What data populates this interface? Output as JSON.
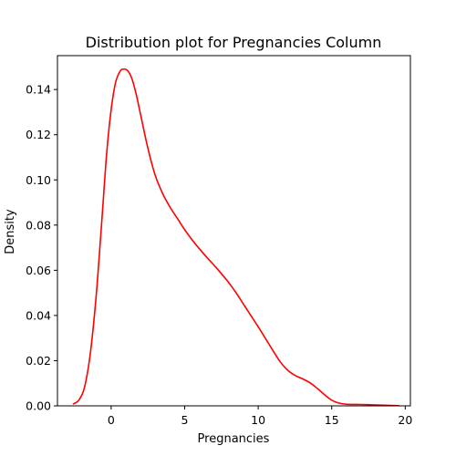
{
  "chart_data": {
    "type": "line",
    "title": "Distribution plot for Pregnancies Column",
    "xlabel": "Pregnancies",
    "ylabel": "Density",
    "xlim": [
      -3.65,
      20.35
    ],
    "ylim": [
      0,
      0.155
    ],
    "x_ticks": [
      0,
      5,
      10,
      15,
      20
    ],
    "y_ticks": [
      0.0,
      0.02,
      0.04,
      0.06,
      0.08,
      0.1,
      0.12,
      0.14
    ],
    "x_tick_labels": [
      "0",
      "5",
      "10",
      "15",
      "20"
    ],
    "y_tick_labels": [
      "0.00",
      "0.02",
      "0.04",
      "0.06",
      "0.08",
      "0.10",
      "0.12",
      "0.14"
    ],
    "grid": false,
    "legend": "none",
    "series": [
      {
        "color": "#ff0000",
        "x": [
          -2.6,
          -2.2,
          -1.8,
          -1.4,
          -1.0,
          -0.6,
          -0.3,
          0.0,
          0.3,
          0.6,
          0.8,
          1.1,
          1.4,
          1.7,
          2.0,
          2.5,
          3.0,
          3.5,
          4.0,
          4.5,
          5.0,
          5.5,
          6.0,
          6.5,
          7.0,
          7.5,
          8.0,
          8.5,
          9.0,
          9.5,
          10.0,
          10.5,
          11.0,
          11.5,
          12.0,
          12.5,
          13.0,
          13.5,
          14.0,
          14.5,
          15.0,
          15.5,
          16.0,
          17.0,
          18.0,
          19.0,
          19.6
        ],
        "y": [
          0.0008,
          0.0025,
          0.0085,
          0.024,
          0.05,
          0.085,
          0.112,
          0.131,
          0.143,
          0.148,
          0.149,
          0.1485,
          0.145,
          0.138,
          0.129,
          0.114,
          0.102,
          0.094,
          0.088,
          0.083,
          0.078,
          0.0735,
          0.0695,
          0.0658,
          0.0622,
          0.0585,
          0.0545,
          0.05,
          0.045,
          0.04,
          0.035,
          0.0298,
          0.0245,
          0.0195,
          0.0158,
          0.0135,
          0.012,
          0.0103,
          0.0078,
          0.005,
          0.0025,
          0.0012,
          0.0007,
          0.0006,
          0.0004,
          0.0002,
          0.0001
        ]
      }
    ]
  }
}
